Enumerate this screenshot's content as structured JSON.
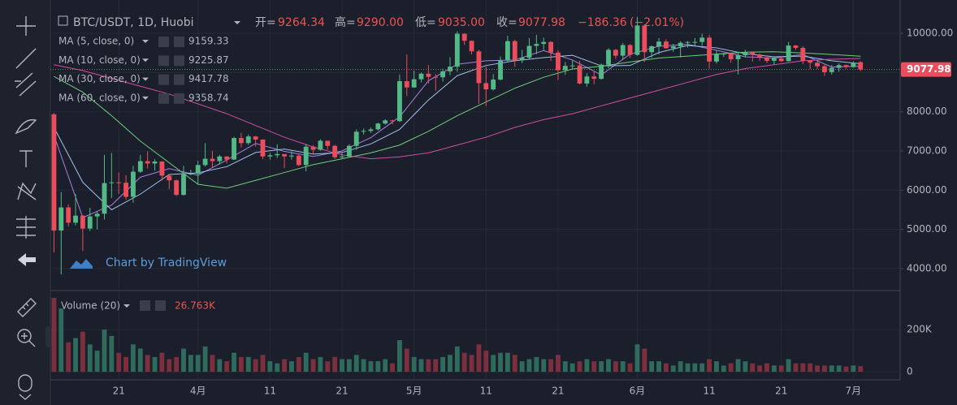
{
  "chart_data": {
    "type": "candlestick",
    "title": "BTC/USDT, 1D, Huobi",
    "last_bar": {
      "open_label": "开=",
      "open": 9264.34,
      "high_label": "高=",
      "high": {
        "value": 9290,
        "label": "9290.00"
      },
      "low_label": "低=",
      "low": {
        "value": 9035,
        "label": "9035.00"
      },
      "close_label": "收=",
      "close": 9077.98
    },
    "change": {
      "value": -186.36,
      "label": "−186.36"
    },
    "change_pct": {
      "value": -2.01,
      "label": "(−2.01%)"
    },
    "open": [
      7935,
      4970,
      5560,
      5170,
      5350,
      5020,
      5330,
      5400,
      6180,
      6200,
      6190,
      5830,
      6470,
      6740,
      6680,
      6730,
      6370,
      6250,
      5880,
      6400,
      6420,
      6640,
      6800,
      6740,
      6860,
      6780,
      7330,
      7200,
      7370,
      7290,
      6860,
      6890,
      6920,
      6860,
      6880,
      6640,
      7110,
      7030,
      7260,
      7130,
      6840,
      6860,
      7130,
      7490,
      7510,
      7550,
      7700,
      7780,
      7760,
      8780,
      8620,
      8830,
      8970,
      8890,
      8880,
      9030,
      9150,
      9990,
      9810,
      9540,
      8730,
      8570,
      8820,
      9310,
      9800,
      9310,
      9380,
      9680,
      9730,
      9780,
      9510,
      9060,
      9170,
      9180,
      8720,
      8900,
      8840,
      9200,
      9580,
      9430,
      9700,
      9450,
      10200,
      9520,
      9670,
      9790,
      9620,
      9670,
      9760,
      9780,
      9780,
      9890,
      9280,
      9470,
      9480,
      9340,
      9440,
      9520,
      9460,
      9390,
      9300,
      9360,
      9290,
      9690,
      9630,
      9300,
      9250,
      9160,
      9010,
      9120,
      9190,
      9140,
      9264.34
    ],
    "high": [
      7970,
      5950,
      5640,
      5900,
      5360,
      5550,
      5450,
      6900,
      6950,
      6450,
      6380,
      6620,
      6900,
      6990,
      6790,
      6740,
      6380,
      6270,
      6620,
      6520,
      6750,
      7200,
      7000,
      6900,
      6860,
      7360,
      7460,
      7420,
      7380,
      7300,
      6950,
      7170,
      6920,
      6990,
      6920,
      7180,
      7150,
      7300,
      7260,
      7160,
      6940,
      7170,
      7550,
      7570,
      7600,
      7720,
      7810,
      7800,
      8950,
      9460,
      9050,
      9000,
      9190,
      8960,
      9100,
      9390,
      10050,
      10000,
      9810,
      9580,
      9150,
      8960,
      9410,
      9940,
      9840,
      9580,
      9880,
      9960,
      9890,
      9800,
      9570,
      9270,
      9310,
      9300,
      8980,
      9020,
      9230,
      9620,
      9600,
      9750,
      9730,
      10420,
      10230,
      9690,
      9880,
      9850,
      9730,
      9800,
      9800,
      9880,
      9990,
      9960,
      9560,
      9500,
      9490,
      9490,
      9580,
      9540,
      9480,
      9400,
      9400,
      9410,
      9780,
      9700,
      9670,
      9320,
      9290,
      9200,
      9190,
      9230,
      9200,
      9290,
      9290
    ],
    "low": [
      4410,
      3850,
      5070,
      5100,
      4450,
      4960,
      5000,
      5250,
      5800,
      5900,
      5760,
      5680,
      6440,
      6550,
      6500,
      6250,
      6030,
      5850,
      5860,
      6380,
      6150,
      6600,
      6590,
      6650,
      6680,
      6770,
      7090,
      7150,
      7110,
      6790,
      6780,
      6820,
      6560,
      6780,
      6610,
      6480,
      6920,
      7010,
      7030,
      6800,
      6790,
      6840,
      7030,
      7420,
      7460,
      7520,
      7670,
      7680,
      7740,
      8400,
      8610,
      8750,
      8720,
      8540,
      8770,
      8930,
      9020,
      9700,
      9460,
      8200,
      8150,
      8540,
      8800,
      9270,
      9150,
      9240,
      9350,
      9470,
      9570,
      9300,
      8810,
      8940,
      9100,
      8700,
      8640,
      8700,
      8820,
      9110,
      9350,
      9340,
      9370,
      9430,
      9270,
      9380,
      9460,
      9600,
      9530,
      9380,
      9640,
      9680,
      9680,
      9100,
      9230,
      9400,
      9250,
      8950,
      9380,
      9280,
      9300,
      9240,
      9200,
      9270,
      9280,
      9580,
      9210,
      9090,
      9090,
      8920,
      8950,
      9020,
      9100,
      9120,
      9035
    ],
    "close": [
      4970,
      5560,
      5170,
      5350,
      5020,
      5330,
      5400,
      6180,
      6200,
      6190,
      5830,
      6470,
      6740,
      6680,
      6730,
      6370,
      6250,
      5880,
      6400,
      6420,
      6640,
      6800,
      6740,
      6860,
      6780,
      7330,
      7200,
      7370,
      7290,
      6860,
      6890,
      6920,
      6860,
      6880,
      6640,
      7110,
      7030,
      7260,
      7130,
      6840,
      6860,
      7130,
      7490,
      7510,
      7550,
      7700,
      7780,
      7760,
      8780,
      8620,
      8830,
      8970,
      8890,
      8880,
      9030,
      9150,
      9990,
      9810,
      9540,
      8730,
      8570,
      8820,
      9310,
      9800,
      9310,
      9380,
      9680,
      9730,
      9780,
      9510,
      9060,
      9170,
      9180,
      8720,
      8900,
      8840,
      9200,
      9580,
      9430,
      9700,
      9450,
      10200,
      9520,
      9670,
      9790,
      9620,
      9670,
      9760,
      9780,
      9780,
      9890,
      9280,
      9470,
      9480,
      9340,
      9440,
      9520,
      9460,
      9390,
      9300,
      9360,
      9290,
      9690,
      9630,
      9300,
      9250,
      9160,
      9010,
      9120,
      9190,
      9140,
      9240,
      9077.98
    ],
    "up_color": "#53b987",
    "down_color": "#eb4d5c",
    "xlim": [
      -0.5,
      117.5
    ],
    "xticks": [
      {
        "value": 9,
        "label": "21"
      },
      {
        "value": 20,
        "label": "4月"
      },
      {
        "value": 30,
        "label": "11"
      },
      {
        "value": 40,
        "label": "21"
      },
      {
        "value": 50,
        "label": "5月"
      },
      {
        "value": 60,
        "label": "11"
      },
      {
        "value": 70,
        "label": "21"
      },
      {
        "value": 81,
        "label": "6月"
      },
      {
        "value": 91,
        "label": "11"
      },
      {
        "value": 101,
        "label": "21"
      },
      {
        "value": 111,
        "label": "7月"
      }
    ],
    "ylim": [
      3460,
      10850
    ],
    "yticks": [
      {
        "value": 4000,
        "label": "4000.00"
      },
      {
        "value": 5000,
        "label": "5000.00"
      },
      {
        "value": 6000,
        "label": "6000.00"
      },
      {
        "value": 7000,
        "label": "7000.00"
      },
      {
        "value": 8000,
        "label": "8000.00"
      },
      {
        "value": 9000,
        "label": "9000.00"
      },
      {
        "value": 10000,
        "label": "10000.00"
      }
    ],
    "grid": true,
    "series": [
      {
        "name": "MA (5, close, 0)",
        "color": "#a77fe0",
        "x": [
          0,
          4,
          8,
          12,
          16,
          20,
          24,
          28,
          32,
          36,
          40,
          44,
          48,
          52,
          56,
          60,
          64,
          68,
          72,
          76,
          80,
          84,
          88,
          92,
          96,
          100,
          104,
          108,
          112
        ],
        "values": [
          7400,
          5300,
          5620,
          6330,
          6550,
          6380,
          6770,
          7190,
          6990,
          6860,
          7000,
          7340,
          7870,
          8790,
          9210,
          9300,
          9320,
          9560,
          9320,
          8940,
          9470,
          9670,
          9720,
          9570,
          9400,
          9370,
          9460,
          9140,
          9159.33
        ]
      },
      {
        "name": "MA (10, close, 0)",
        "color": "#9fc3e8",
        "x": [
          0,
          4,
          8,
          12,
          16,
          20,
          24,
          28,
          32,
          36,
          40,
          44,
          48,
          52,
          56,
          60,
          64,
          68,
          72,
          76,
          80,
          84,
          88,
          92,
          96,
          100,
          104,
          108,
          112
        ],
        "values": [
          7600,
          6200,
          5500,
          5900,
          6400,
          6440,
          6600,
          6960,
          7050,
          6920,
          6960,
          7180,
          7550,
          8300,
          8920,
          9180,
          9300,
          9380,
          9440,
          9170,
          9180,
          9510,
          9690,
          9630,
          9480,
          9400,
          9420,
          9300,
          9225.87
        ]
      },
      {
        "name": "MA (30, close, 0)",
        "color": "#6fcf7a",
        "x": [
          0,
          4,
          8,
          12,
          16,
          20,
          24,
          28,
          32,
          36,
          40,
          44,
          48,
          52,
          56,
          60,
          64,
          68,
          72,
          76,
          80,
          84,
          88,
          92,
          96,
          100,
          104,
          108,
          112
        ],
        "values": [
          8900,
          8500,
          7900,
          7250,
          6700,
          6150,
          6050,
          6250,
          6450,
          6650,
          6800,
          6950,
          7150,
          7500,
          7900,
          8250,
          8600,
          8880,
          9090,
          9160,
          9270,
          9370,
          9420,
          9470,
          9520,
          9530,
          9500,
          9460,
          9417.78
        ]
      },
      {
        "name": "MA (60, close, 0)",
        "color": "#d04fa2",
        "x": [
          0,
          4,
          8,
          12,
          16,
          20,
          24,
          28,
          32,
          36,
          40,
          44,
          48,
          52,
          56,
          60,
          64,
          68,
          72,
          76,
          80,
          84,
          88,
          92,
          96,
          100,
          104,
          108,
          112
        ],
        "values": [
          9200,
          9050,
          8850,
          8650,
          8450,
          8200,
          7950,
          7650,
          7350,
          7100,
          6900,
          6800,
          6850,
          6950,
          7150,
          7350,
          7600,
          7800,
          7950,
          8150,
          8350,
          8550,
          8750,
          8950,
          9100,
          9200,
          9300,
          9340,
          9358.74
        ]
      }
    ],
    "volume": {
      "name": "Volume (20)",
      "last_label": "26.763K",
      "up_color": "#2e6b5c",
      "down_color": "#7c2f3c",
      "ylim": [
        -38,
        377
      ],
      "yticks": [
        {
          "value": 200,
          "label": "200K"
        },
        0
      ],
      "values": [
        350,
        300,
        140,
        160,
        190,
        130,
        100,
        200,
        170,
        90,
        70,
        130,
        110,
        80,
        70,
        90,
        60,
        70,
        110,
        80,
        80,
        120,
        80,
        60,
        50,
        90,
        70,
        70,
        60,
        80,
        50,
        40,
        60,
        50,
        70,
        90,
        60,
        70,
        50,
        70,
        60,
        60,
        80,
        60,
        50,
        50,
        60,
        40,
        150,
        110,
        70,
        60,
        60,
        60,
        70,
        80,
        120,
        90,
        80,
        130,
        100,
        80,
        90,
        90,
        80,
        50,
        60,
        70,
        60,
        60,
        80,
        50,
        40,
        50,
        60,
        50,
        50,
        60,
        50,
        50,
        40,
        130,
        110,
        50,
        50,
        40,
        30,
        50,
        40,
        40,
        40,
        60,
        50,
        30,
        40,
        60,
        50,
        40,
        30,
        40,
        30,
        30,
        60,
        40,
        40,
        40,
        30,
        30,
        30,
        30,
        25,
        30,
        26.763
      ]
    },
    "watermark": "Chart by TradingView"
  }
}
